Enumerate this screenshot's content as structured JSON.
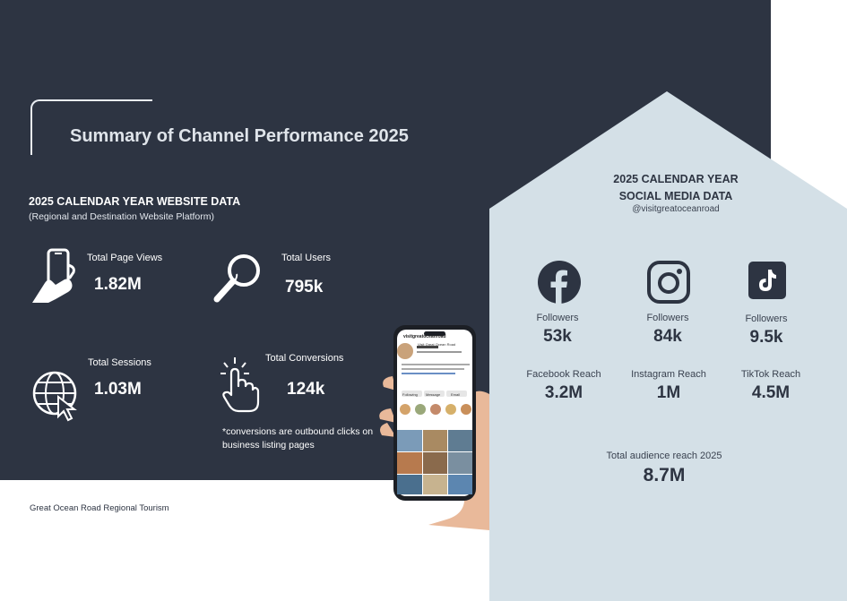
{
  "page": {
    "title": "Summary of Channel Performance 2025",
    "footer": "Great Ocean Road Regional Tourism"
  },
  "website": {
    "heading": "2025 CALENDAR YEAR WEBSITE DATA",
    "subheading": "(Regional and Destination Website Platform)",
    "stats": [
      {
        "label": "Total Page Views",
        "value": "1.82M",
        "icon": "hand-phone-icon"
      },
      {
        "label": "Total Users",
        "value": "795k",
        "icon": "magnifier-icon"
      },
      {
        "label": "Total Sessions",
        "value": "1.03M",
        "icon": "globe-cursor-icon"
      },
      {
        "label": "Total Conversions",
        "value": "124k",
        "icon": "tap-hand-icon"
      }
    ],
    "note": "*conversions are outbound clicks on business listing pages"
  },
  "social": {
    "heading_line1": "2025 CALENDAR YEAR",
    "heading_line2": "SOCIAL MEDIA DATA",
    "handle": "@visitgreatoceanroad",
    "platforms": [
      {
        "name": "Facebook",
        "icon": "facebook-icon",
        "followers_label": "Followers",
        "followers": "53k",
        "reach_label": "Facebook Reach",
        "reach": "3.2M"
      },
      {
        "name": "Instagram",
        "icon": "instagram-icon",
        "followers_label": "Followers",
        "followers": "84k",
        "reach_label": "Instagram Reach",
        "reach": "1M"
      },
      {
        "name": "TikTok",
        "icon": "tiktok-icon",
        "followers_label": "Followers",
        "followers": "9.5k",
        "reach_label": "TikTok Reach",
        "reach": "4.5M"
      }
    ],
    "total_label": "Total audience reach 2025",
    "total_value": "8.7M"
  },
  "phone": {
    "username": "visitgreatoceanroad",
    "profile_name": "Visit Great Ocean Road",
    "follow_button": "Following",
    "message_button": "Message",
    "email_button": "Email"
  },
  "colors": {
    "dark_panel": "#2d3442",
    "house_panel": "#d4e0e7",
    "text_light": "#ffffff"
  }
}
